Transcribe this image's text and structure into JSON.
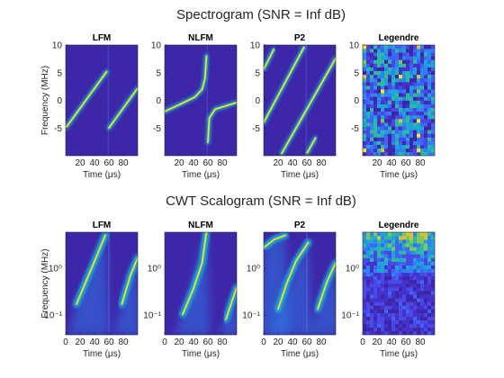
{
  "suptitles": [
    "Spectrogram (SNR = Inf dB)",
    "CWT Scalogram (SNR = Inf dB)"
  ],
  "chart_data": [
    {
      "type": "heatmap",
      "title": "LFM",
      "xlabel": "Time (μs)",
      "ylabel": "Frequency (MHz)",
      "xlim": [
        0,
        100
      ],
      "ylim": [
        -10,
        10
      ],
      "xticks": [
        20,
        40,
        60,
        80
      ],
      "yticks": [
        -5,
        0,
        5,
        10
      ]
    },
    {
      "type": "heatmap",
      "title": "NLFM",
      "xlabel": "Time (μs)",
      "xlim": [
        0,
        100
      ],
      "ylim": [
        -10,
        10
      ],
      "xticks": [
        20,
        40,
        60,
        80
      ],
      "yticks": [
        -5,
        0,
        5,
        10
      ]
    },
    {
      "type": "heatmap",
      "title": "P2",
      "xlabel": "Time (μs)",
      "xlim": [
        0,
        100
      ],
      "ylim": [
        -10,
        10
      ],
      "xticks": [
        20,
        40,
        60,
        80
      ],
      "yticks": [
        -5,
        0,
        5,
        10
      ]
    },
    {
      "type": "heatmap",
      "title": "Legendre",
      "xlabel": "Time (μs)",
      "xlim": [
        0,
        100
      ],
      "ylim": [
        -10,
        10
      ],
      "xticks": [
        20,
        40,
        60,
        80
      ],
      "yticks": [
        -5,
        0,
        5,
        10
      ]
    },
    {
      "type": "heatmap",
      "title": "LFM",
      "xlabel": "Time (μs)",
      "ylabel": "Frequency (MHz)",
      "yscale": "log",
      "xlim": [
        0,
        100
      ],
      "ylim": [
        0.038,
        5.9
      ],
      "xticks": [
        0,
        20,
        40,
        60,
        80
      ],
      "yticks": [
        {
          "value": 0.1,
          "label": "10⁻¹"
        },
        {
          "value": 1,
          "label": "10⁰"
        }
      ]
    },
    {
      "type": "heatmap",
      "title": "NLFM",
      "xlabel": "Time (μs)",
      "yscale": "log",
      "xlim": [
        0,
        100
      ],
      "ylim": [
        0.038,
        5.9
      ],
      "xticks": [
        0,
        20,
        40,
        60,
        80
      ],
      "yticks": [
        {
          "value": 0.1,
          "label": "10⁻¹"
        },
        {
          "value": 1,
          "label": "10⁰"
        }
      ]
    },
    {
      "type": "heatmap",
      "title": "P2",
      "xlabel": "Time (μs)",
      "yscale": "log",
      "xlim": [
        0,
        100
      ],
      "ylim": [
        0.038,
        5.9
      ],
      "xticks": [
        0,
        20,
        40,
        60,
        80
      ],
      "yticks": [
        {
          "value": 0.1,
          "label": "10⁻¹"
        },
        {
          "value": 1,
          "label": "10⁰"
        }
      ]
    },
    {
      "type": "heatmap",
      "title": "Legendre",
      "xlabel": "Time (μs)",
      "yscale": "log",
      "xlim": [
        0,
        100
      ],
      "ylim": [
        0.038,
        5.9
      ],
      "xticks": [
        0,
        20,
        40,
        60,
        80
      ],
      "yticks": [
        {
          "value": 0.1,
          "label": "10⁻¹"
        },
        {
          "value": 1,
          "label": "10⁰"
        }
      ]
    }
  ]
}
